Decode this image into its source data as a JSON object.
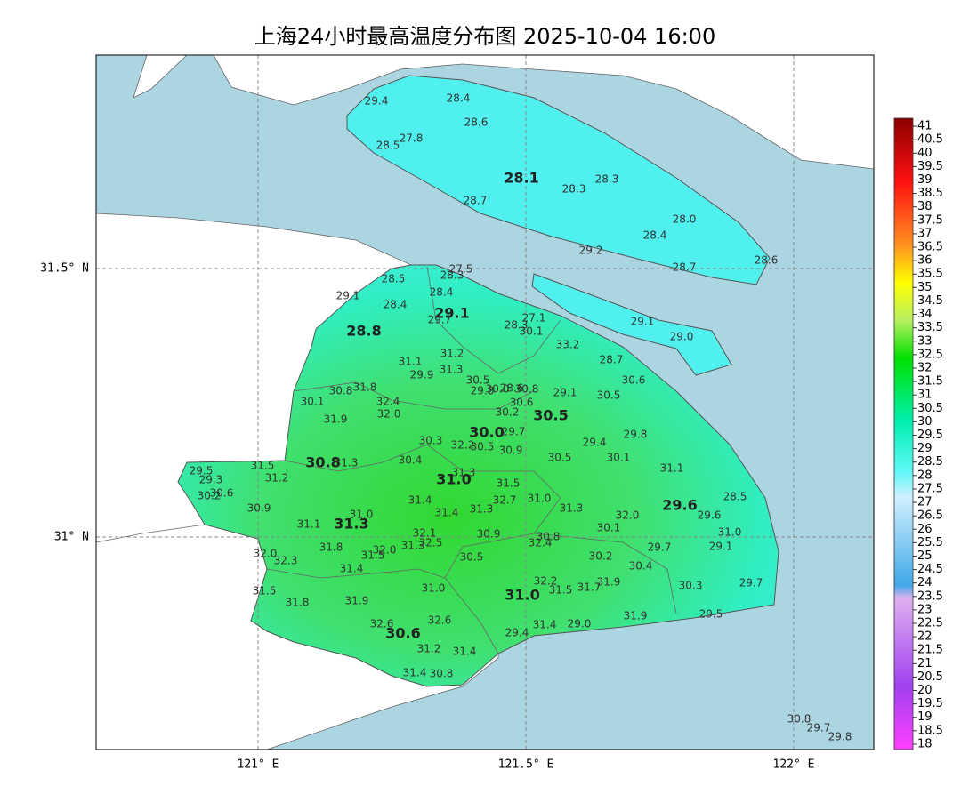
{
  "title": "上海24小时最高温度分布图 2025-10-04 16:00",
  "lat_labels": [
    "31.5° N",
    "31° N"
  ],
  "lon_labels": [
    "121° E",
    "121.5° E",
    "122° E"
  ],
  "colorbar_labels": [
    "41",
    "40.5",
    "40",
    "39.5",
    "39",
    "38.5",
    "38",
    "37.5",
    "37",
    "36.5",
    "36",
    "35.5",
    "35",
    "34.5",
    "34",
    "33.5",
    "33",
    "32.5",
    "32",
    "31.5",
    "31",
    "30.5",
    "30",
    "29.5",
    "29",
    "28.5",
    "28",
    "27.5",
    "27",
    "26.5",
    "26",
    "25.5",
    "25",
    "24.5",
    "24",
    "23.5",
    "23",
    "22.5",
    "22",
    "21.5",
    "21",
    "20.5",
    "20",
    "19.5",
    "19",
    "18.5",
    "18"
  ],
  "stations": [
    "29.4",
    "28.4",
    "28.6",
    "27.8",
    "28.5",
    "28.1",
    "28.3",
    "28.3",
    "28.7",
    "28.0",
    "28.4",
    "29.2",
    "28.7",
    "28.6",
    "27.5",
    "28.3",
    "28.5",
    "29.1",
    "28.4",
    "28.4",
    "29.1",
    "29.7",
    "27.1",
    "28.3",
    "30.1",
    "28.8",
    "29.1",
    "29.0",
    "33.2",
    "31.2",
    "31.1",
    "28.7",
    "31.3",
    "29.9",
    "30.5",
    "30.6",
    "30.8",
    "31.8",
    "29.8",
    "30.0",
    "28.6",
    "30.8",
    "29.1",
    "30.5",
    "30.1",
    "32.4",
    "30.6",
    "30.2",
    "30.5",
    "32.0",
    "31.9",
    "30.0",
    "29.7",
    "29.8",
    "29.4",
    "30.3",
    "32.2",
    "30.5",
    "30.9",
    "30.1",
    "30.5",
    "30.4",
    "30.8",
    "31.3",
    "31.1",
    "29.5",
    "31.5",
    "31.3",
    "31.0",
    "29.3",
    "31.2",
    "31.5",
    "30.6",
    "30.2",
    "28.5",
    "31.4",
    "32.7",
    "31.0",
    "29.6",
    "30.9",
    "31.3",
    "31.4",
    "31.3",
    "32.0",
    "29.6",
    "31.0",
    "31.3",
    "31.1",
    "30.1",
    "31.0",
    "32.1",
    "30.9",
    "30.8",
    "32.4",
    "32.5",
    "31.8",
    "31.3",
    "29.1",
    "32.0",
    "29.7",
    "31.5",
    "32.0",
    "32.3",
    "30.5",
    "30.2",
    "30.4",
    "31.4",
    "32.2",
    "31.9",
    "31.7",
    "31.5",
    "31.0",
    "31.0",
    "30.3",
    "29.7",
    "31.5",
    "31.8",
    "31.9",
    "31.9",
    "29.5",
    "32.6",
    "32.6",
    "29.0",
    "31.4",
    "30.6",
    "29.4",
    "31.2",
    "31.4",
    "31.4",
    "30.8",
    "30.8",
    "29.7",
    "29.8"
  ]
}
